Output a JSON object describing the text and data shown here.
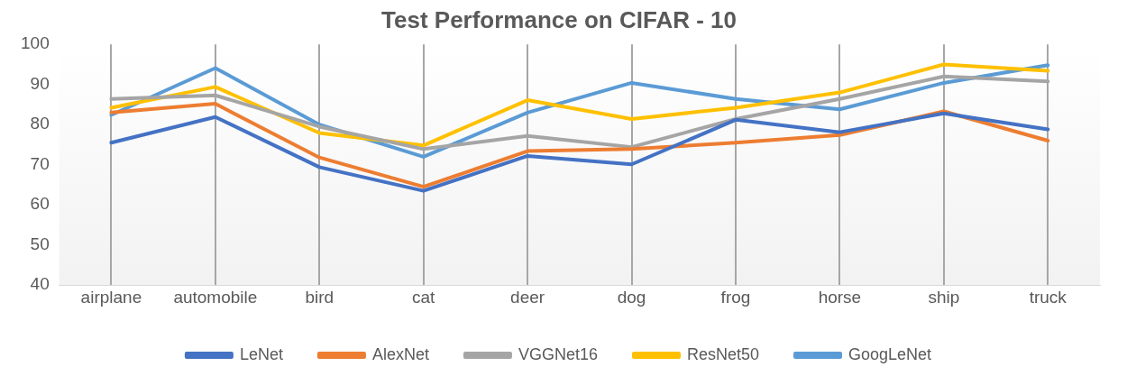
{
  "chart_data": {
    "type": "line",
    "title": "Test Performance on CIFAR - 10",
    "categories": [
      "airplane",
      "automobile",
      "bird",
      "cat",
      "deer",
      "dog",
      "frog",
      "horse",
      "ship",
      "truck"
    ],
    "series": [
      {
        "name": "LeNet",
        "color": "#4472c4",
        "values": [
          75.5,
          81.9,
          69.4,
          63.5,
          72.2,
          70.1,
          81.2,
          78.1,
          82.8,
          78.8
        ]
      },
      {
        "name": "AlexNet",
        "color": "#ed7d31",
        "values": [
          83,
          85.2,
          71.8,
          64.5,
          73.4,
          73.9,
          75.5,
          77.4,
          83.3,
          76
        ]
      },
      {
        "name": "VGGNet16",
        "color": "#a5a5a5",
        "values": [
          86.4,
          87.3,
          79.5,
          73.9,
          77.2,
          74.4,
          81.4,
          86.4,
          92,
          90.8
        ]
      },
      {
        "name": "ResNet50",
        "color": "#ffc000",
        "values": [
          84.2,
          89.4,
          77.9,
          74.8,
          86.1,
          81.4,
          84.2,
          88,
          95,
          93.4
        ]
      },
      {
        "name": "GoogLeNet",
        "color": "#5b9bd5",
        "values": [
          82.4,
          94.1,
          80,
          72,
          83,
          90.4,
          86.4,
          83.8,
          90.4,
          94.8
        ]
      }
    ],
    "ylim": [
      40,
      100
    ],
    "yticks": [
      40,
      50,
      60,
      70,
      80,
      90,
      100
    ],
    "grid": "x",
    "legend": "bottom",
    "marker": "none",
    "line_style": "solid"
  }
}
